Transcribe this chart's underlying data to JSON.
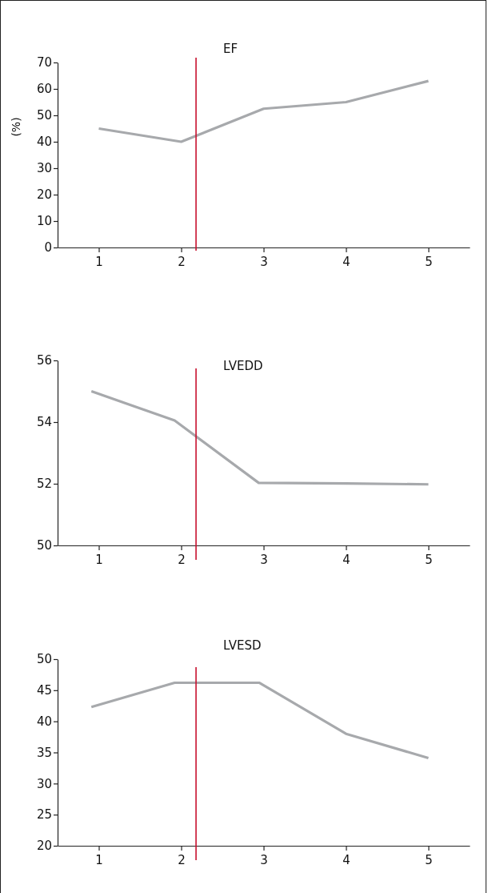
{
  "chart_data": [
    {
      "type": "line",
      "title": "EF",
      "ylabel": "(%)",
      "x": [
        1,
        2,
        3,
        4,
        5
      ],
      "xlim": [
        0.5,
        5.5
      ],
      "xticks": [
        1,
        2,
        3,
        4,
        5
      ],
      "ylim": [
        0,
        70
      ],
      "yticks": [
        0,
        10,
        20,
        30,
        40,
        50,
        60,
        70
      ],
      "grid": false,
      "series": [
        {
          "color": "#a7a9ac",
          "values": [
            45,
            40,
            52.5,
            55,
            63
          ]
        }
      ],
      "ref_lines": [
        {
          "axis": "x",
          "value": 2.18,
          "color": "#c8102e"
        }
      ]
    },
    {
      "type": "line",
      "title": "LVEDD",
      "xlim": [
        0.5,
        5.5
      ],
      "xticks": [
        1,
        2,
        3,
        4,
        5
      ],
      "ylim": [
        50,
        56
      ],
      "yticks": [
        50,
        52,
        54,
        56
      ],
      "grid": false,
      "series": [
        {
          "color": "#a7a9ac",
          "x": [
            0.91,
            1.92,
            2.94,
            4,
            5
          ],
          "values": [
            55,
            54.05,
            52.03,
            52.01,
            51.98
          ]
        }
      ],
      "ref_lines": [
        {
          "axis": "x",
          "value": 2.18,
          "color": "#c8102e"
        }
      ]
    },
    {
      "type": "line",
      "title": "LVESD",
      "xlim": [
        0.5,
        5.5
      ],
      "xticks": [
        1,
        2,
        3,
        4,
        5
      ],
      "ylim": [
        20,
        50
      ],
      "yticks": [
        20,
        25,
        30,
        35,
        40,
        45,
        50
      ],
      "grid": false,
      "series": [
        {
          "color": "#a7a9ac",
          "x": [
            0.91,
            1.92,
            2.95,
            4,
            5
          ],
          "values": [
            42.3,
            46.2,
            46.2,
            38,
            34.1
          ]
        }
      ],
      "ref_lines": [
        {
          "axis": "x",
          "value": 2.18,
          "color": "#c8102e"
        }
      ]
    }
  ]
}
